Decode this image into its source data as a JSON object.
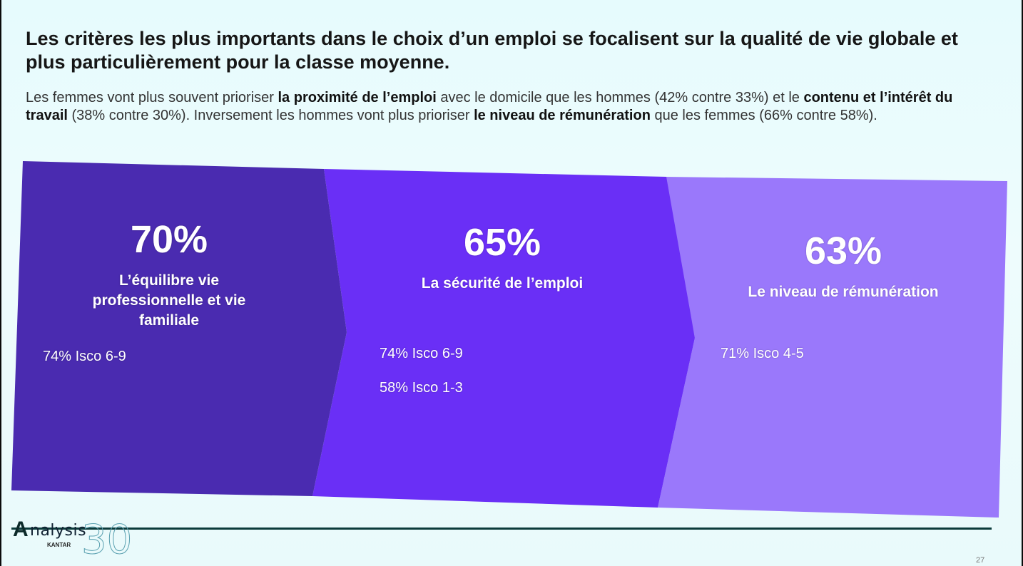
{
  "header": {
    "title": "Les critères les plus importants dans le choix d’un emploi se focalisent sur la qualité de vie globale et plus particulièrement pour la classe moyenne.",
    "subtitle_parts": [
      {
        "text": "Les femmes vont plus souvent prioriser ",
        "bold": false
      },
      {
        "text": "la proximité de l’emploi",
        "bold": true
      },
      {
        "text": " avec le domicile que les hommes (42% contre 33%) et le ",
        "bold": false
      },
      {
        "text": "contenu et l’intérêt du travail",
        "bold": true
      },
      {
        "text": " (38% contre 30%). Inversement les hommes vont plus prioriser ",
        "bold": false
      },
      {
        "text": "le niveau de rémunération",
        "bold": true
      },
      {
        "text": " que les femmes (66% contre 58%).",
        "bold": false
      }
    ]
  },
  "panels": [
    {
      "percent": "70%",
      "label_lines": [
        "L’équilibre vie",
        "professionnelle et vie",
        "familiale"
      ],
      "stats": [
        "74% Isco 6-9"
      ],
      "color": "#4a2bb0"
    },
    {
      "percent": "65%",
      "label_lines": [
        "La sécurité de l’emploi"
      ],
      "stats": [
        "74% Isco 6-9",
        "58% Isco 1-3"
      ],
      "color": "#6a2ff6"
    },
    {
      "percent": "63%",
      "label_lines": [
        "Le niveau de rémunération"
      ],
      "stats": [
        "71% Isco 4-5"
      ],
      "color": "#9a78fb"
    }
  ],
  "footer": {
    "logo_text": "nalysis",
    "logo_initial": "A",
    "logo_sub": "KANTAR",
    "logo_number": "30",
    "page_number": "27"
  }
}
